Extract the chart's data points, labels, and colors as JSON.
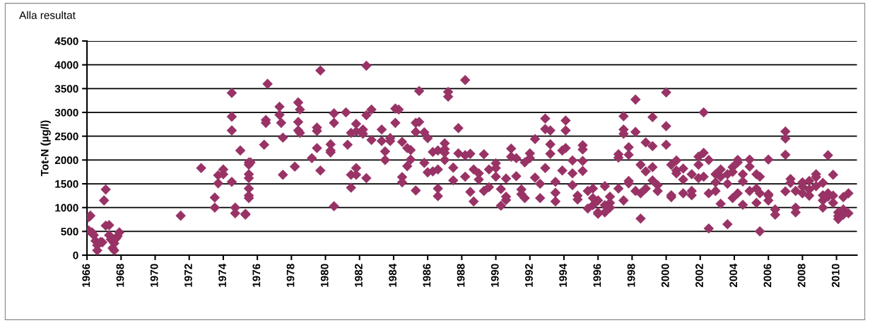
{
  "chart_data": {
    "type": "scatter",
    "title": "Alla resultat",
    "ylabel": "Tot-N (µg/l)",
    "marker": "diamond",
    "grid": "y",
    "legend": false,
    "xlim": [
      1966,
      2011.2
    ],
    "xticks": [
      1966,
      1968,
      1970,
      1972,
      1974,
      1976,
      1978,
      1980,
      1982,
      1984,
      1986,
      1988,
      1990,
      1992,
      1994,
      1996,
      1998,
      2000,
      2002,
      2004,
      2006,
      2008,
      2010
    ],
    "ylim": [
      0,
      4500
    ],
    "yticks": [
      0,
      500,
      1000,
      1500,
      2000,
      2500,
      3000,
      3500,
      4000,
      4500
    ],
    "series": [
      {
        "color": "#993366",
        "x": [
          1966.1,
          1966.2,
          1966.1,
          1966.3,
          1966.4,
          1966.5,
          1966.6,
          1966.6,
          1966.8,
          1966.9,
          1967.0,
          1967.1,
          1967.1,
          1967.3,
          1967.3,
          1967.4,
          1967.5,
          1967.6,
          1967.6,
          1967.7,
          1967.8,
          1967.9,
          1971.5,
          1972.7,
          1973.5,
          1973.5,
          1973.7,
          1973.7,
          1974,
          1974,
          1974.5,
          1974.5,
          1974.5,
          1974.5,
          1974.7,
          1974.7,
          1975,
          1975.3,
          1975.3,
          1975.5,
          1975.5,
          1975.5,
          1975.5,
          1975.5,
          1975.5,
          1975.5,
          1975.6,
          1976.4,
          1976.5,
          1976.5,
          1976.6,
          1977.3,
          1977.3,
          1977.4,
          1977.5,
          1977.5,
          1978.2,
          1978.4,
          1978.4,
          1978.4,
          1978.5,
          1978.5,
          1979.2,
          1979.5,
          1979.5,
          1979.5,
          1979.7,
          1979.7,
          1980.3,
          1980.3,
          1980.3,
          1980.5,
          1980.5,
          1980.5,
          1981.2,
          1981.3,
          1981.5,
          1981.5,
          1981.5,
          1981.8,
          1981.8,
          1981.8,
          1981.8,
          1982.2,
          1982.2,
          1982.4,
          1982.4,
          1982.4,
          1982.7,
          1982.7,
          1983.3,
          1983.3,
          1983.5,
          1983.5,
          1983.8,
          1983.8,
          1984.1,
          1984.1,
          1984.3,
          1984.5,
          1984.5,
          1984.5,
          1984.8,
          1984.8,
          1985.0,
          1985.0,
          1985.3,
          1985.3,
          1985.3,
          1985.5,
          1985.5,
          1985.8,
          1985.8,
          1986,
          1986,
          1986.3,
          1986.3,
          1986.6,
          1986.6,
          1986.6,
          1986.6,
          1987,
          1987,
          1987,
          1987,
          1987.2,
          1987.2,
          1987.5,
          1987.5,
          1987.8,
          1987.8,
          1988.2,
          1988.2,
          1988.2,
          1988.5,
          1988.5,
          1988.7,
          1988.7,
          1989,
          1989,
          1989.3,
          1989.3,
          1989.6,
          1989.6,
          1990,
          1990,
          1990,
          1990.3,
          1990.3,
          1990.6,
          1990.6,
          1990.6,
          1990.9,
          1990.9,
          1991.2,
          1991.2,
          1991.5,
          1991.5,
          1991.7,
          1991.7,
          1992,
          1992,
          1992.3,
          1992.3,
          1992.6,
          1992.6,
          1992.9,
          1992.9,
          1992.9,
          1993.2,
          1993.2,
          1993.2,
          1993.5,
          1993.5,
          1993.5,
          1993.9,
          1993.9,
          1994.1,
          1994.1,
          1994.1,
          1994.5,
          1994.5,
          1994.5,
          1994.8,
          1994.8,
          1995.1,
          1995.1,
          1995.1,
          1995.1,
          1995.4,
          1995.4,
          1995.7,
          1995.7,
          1995.7,
          1996,
          1996,
          1996,
          1996.4,
          1996.4,
          1996.4,
          1996.7,
          1996.7,
          1996.7,
          1997.2,
          1997.2,
          1997.2,
          1997.5,
          1997.5,
          1997.5,
          1997.5,
          1997.8,
          1997.8,
          1997.8,
          1997.8,
          1998.2,
          1998.2,
          1998.2,
          1998.5,
          1998.5,
          1998.5,
          1998.8,
          1998.8,
          1998.8,
          1999.2,
          1999.2,
          1999.2,
          1999.2,
          1999.5,
          1999.5,
          2000,
          2000,
          2000,
          2000.3,
          2000.3,
          2000.3,
          2000.6,
          2000.6,
          2000.6,
          2001,
          2001,
          2001,
          2001.5,
          2001.5,
          2001.5,
          2001.9,
          2001.9,
          2001.9,
          2002.2,
          2002.2,
          2002.2,
          2002.5,
          2002.5,
          2002.5,
          2002.9,
          2002.9,
          2002.9,
          2003.2,
          2003.2,
          2003.2,
          2003.6,
          2003.6,
          2003.6,
          2003.9,
          2003.9,
          2003.9,
          2004.2,
          2004.2,
          2004.2,
          2004.5,
          2004.5,
          2004.5,
          2004.9,
          2004.9,
          2004.9,
          2005.3,
          2005.3,
          2005.3,
          2005.5,
          2005.5,
          2005.5,
          2006,
          2006,
          2006,
          2006,
          2006.4,
          2006.4,
          2007,
          2007,
          2007,
          2007,
          2007.3,
          2007.3,
          2007.6,
          2007.6,
          2007.6,
          2008,
          2008,
          2008,
          2008.4,
          2008.4,
          2008.4,
          2008.8,
          2008.8,
          2008.8,
          2009.2,
          2009.2,
          2009.2,
          2009.2,
          2009.5,
          2009.5,
          2009.5,
          2009.8,
          2009.8,
          2009.8,
          2010.1,
          2010.1,
          2010.1,
          2010.4,
          2010.4,
          2010.4,
          2010.7,
          2010.7
        ],
        "values": [
          800,
          830,
          520,
          480,
          420,
          300,
          210,
          100,
          280,
          270,
          1150,
          1380,
          620,
          630,
          420,
          330,
          150,
          100,
          250,
          350,
          400,
          480,
          830,
          1830,
          1210,
          1000,
          1680,
          1510,
          1700,
          1800,
          3410,
          2910,
          2620,
          1540,
          1000,
          880,
          2200,
          870,
          850,
          1950,
          1900,
          1700,
          1620,
          1400,
          1250,
          1200,
          1950,
          2320,
          2780,
          2840,
          3600,
          2950,
          3120,
          2780,
          1690,
          2470,
          1860,
          3210,
          2800,
          2620,
          3060,
          2570,
          2040,
          2610,
          2250,
          2680,
          3880,
          1780,
          2330,
          2200,
          2160,
          2980,
          1030,
          2780,
          3000,
          2320,
          1690,
          1420,
          2570,
          2600,
          1830,
          1690,
          2760,
          2640,
          2550,
          1620,
          3980,
          2940,
          3060,
          2420,
          2640,
          2400,
          2000,
          2180,
          2460,
          2400,
          3080,
          2780,
          3060,
          1530,
          2380,
          1640,
          2250,
          1870,
          2210,
          2010,
          2590,
          1360,
          2780,
          3450,
          2800,
          1940,
          2580,
          2460,
          1740,
          2170,
          1760,
          1240,
          1400,
          2200,
          1800,
          2350,
          2230,
          2000,
          2150,
          3430,
          3330,
          1840,
          1570,
          2670,
          2140,
          3680,
          2100,
          1650,
          1330,
          2130,
          1130,
          1800,
          1720,
          1590,
          2120,
          1350,
          1800,
          1430,
          1830,
          1650,
          1930,
          1390,
          1040,
          1230,
          1610,
          1160,
          2070,
          2240,
          2040,
          1660,
          1380,
          1280,
          1200,
          1950,
          2140,
          2040,
          2440,
          1630,
          1500,
          1200,
          2870,
          2650,
          1830,
          2620,
          2130,
          2330,
          1540,
          1130,
          1310,
          2200,
          1780,
          2830,
          2620,
          2250,
          1720,
          1470,
          1990,
          1250,
          1170,
          2310,
          2220,
          1980,
          1770,
          980,
          1350,
          1050,
          1400,
          1200,
          900,
          1150,
          870,
          1450,
          1050,
          900,
          1100,
          1230,
          1000,
          2050,
          2120,
          1400,
          2920,
          2640,
          2550,
          1150,
          2110,
          1510,
          1560,
          2270,
          3270,
          2590,
          1350,
          770,
          1900,
          1300,
          1400,
          2370,
          1760,
          2900,
          2290,
          1850,
          1570,
          1470,
          1350,
          3420,
          2710,
          2320,
          1900,
          1260,
          1220,
          1780,
          1990,
          1720,
          1820,
          1300,
          1590,
          1260,
          1700,
          1350,
          1620,
          1900,
          2070,
          3000,
          2150,
          1650,
          1300,
          2000,
          560,
          1700,
          1350,
          1530,
          1080,
          1800,
          1650,
          650,
          1500,
          1700,
          1750,
          1200,
          1850,
          2000,
          1300,
          1950,
          1060,
          1700,
          1550,
          2010,
          1350,
          1860,
          1400,
          1700,
          1100,
          500,
          1300,
          1650,
          1280,
          1150,
          2010,
          1250,
          960,
          850,
          2600,
          2450,
          2110,
          1340,
          1600,
          1520,
          900,
          1000,
          1350,
          1530,
          1440,
          1300,
          1380,
          1250,
          1560,
          1700,
          1640,
          1450,
          1260,
          1000,
          1150,
          1520,
          2100,
          1300,
          1230,
          1690,
          1250,
          1100,
          900,
          820,
          760,
          1220,
          960,
          850,
          1300,
          880
        ]
      }
    ]
  }
}
